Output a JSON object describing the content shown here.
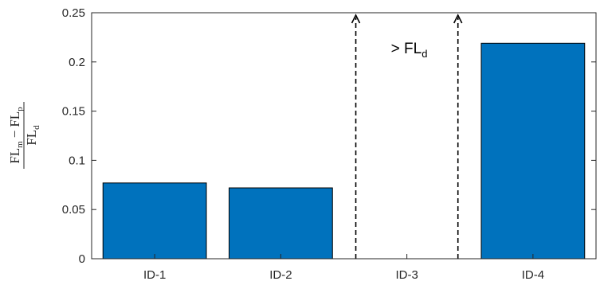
{
  "chart_data": {
    "type": "bar",
    "categories": [
      "ID-1",
      "ID-2",
      "ID-3",
      "ID-4"
    ],
    "values": [
      0.077,
      0.072,
      null,
      0.219
    ],
    "ylim": [
      0,
      0.25
    ],
    "yticks": [
      0,
      0.05,
      0.1,
      0.15,
      0.2,
      0.25
    ],
    "ytick_labels": [
      "0",
      "0.05",
      "0.1",
      "0.15",
      "0.2",
      "0.25"
    ],
    "bar_color": "#0072BD",
    "grid": false,
    "ylabel": {
      "num_left_main": "FL",
      "num_left_sub": "m",
      "minus": "−",
      "num_right_main": "FL",
      "num_right_sub": "p",
      "den_main": "FL",
      "den_sub": "d"
    },
    "annotation": {
      "category": "ID-3",
      "prefix": "> ",
      "main": "FL",
      "sub": "d",
      "style": "dashed upward arrows at both sides of the category"
    }
  }
}
